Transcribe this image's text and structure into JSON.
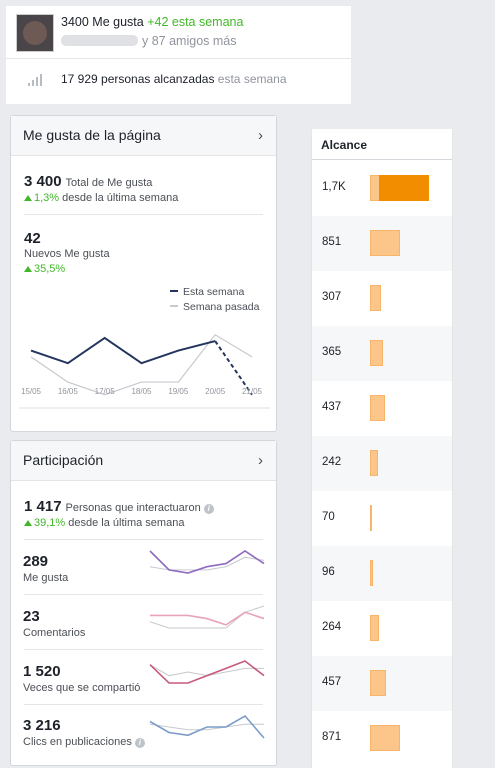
{
  "summary": {
    "likes_count": "3400 Me gusta",
    "likes_week": "+42 esta semana",
    "friends_text": "y 87 amigos más",
    "reach_count": "17 929 personas alcanzadas",
    "reach_week": "esta semana"
  },
  "page_likes": {
    "title": "Me gusta de la página",
    "total": "3 400",
    "total_label": "Total de Me gusta",
    "total_change": "1,3%",
    "total_change_label": "desde la última semana",
    "new": "42",
    "new_label": "Nuevos Me gusta",
    "new_change": "35,5%",
    "legend": {
      "this_week": "Esta semana",
      "last_week": "Semana pasada"
    },
    "colors": {
      "this_week": "#23355e",
      "last_week": "#c7c9cf"
    },
    "chart_data": {
      "type": "line",
      "x": [
        "15/05",
        "16/05",
        "17/05",
        "18/05",
        "19/05",
        "20/05",
        "21/05"
      ],
      "series": [
        {
          "name": "Esta semana",
          "values": [
            7,
            5,
            9,
            5,
            7,
            8.5,
            0
          ],
          "projected_from_index": 5
        },
        {
          "name": "Semana pasada",
          "values": [
            6,
            2,
            0,
            2,
            2,
            9.5,
            6
          ]
        }
      ],
      "ylim": [
        -1,
        12
      ],
      "grid": false
    }
  },
  "engagement": {
    "title": "Participación",
    "total": "1 417",
    "total_label": "Personas que interactuaron",
    "total_change": "39,1%",
    "total_change_label": "desde la última semana",
    "info_icon": "i",
    "metrics": [
      {
        "value": "289",
        "label": "Me gusta",
        "color": "#8e6bbf",
        "this_week": [
          6,
          3,
          2.5,
          3.5,
          4,
          6,
          4
        ],
        "last_week": [
          3.5,
          3,
          3,
          3,
          3.5,
          5,
          4.5
        ]
      },
      {
        "value": "23",
        "label": "Comentarios",
        "color": "#e8a3b8",
        "this_week": [
          5,
          5,
          5,
          4,
          2,
          6,
          4
        ],
        "last_week": [
          3,
          1,
          1,
          1,
          1,
          6,
          8
        ]
      },
      {
        "value": "1 520",
        "label": "Veces que se compartió",
        "color": "#c55a7d",
        "this_week": [
          7,
          2,
          2,
          4,
          6,
          8,
          4
        ],
        "last_week": [
          7,
          4,
          5,
          4,
          5,
          6,
          6
        ]
      },
      {
        "value": "3 216",
        "label": "Clics en publicaciones",
        "color": "#7b9cc9",
        "this_week": [
          7,
          3,
          2,
          5,
          5,
          9,
          1
        ],
        "last_week": [
          6,
          5,
          4,
          4,
          5,
          6,
          6
        ]
      }
    ]
  },
  "reach": {
    "header": "Alcance",
    "colors": {
      "organic": "#fcc68a",
      "paid": "#f28d00"
    },
    "rows": [
      {
        "label": "1,7K",
        "value": 1700,
        "paid": true
      },
      {
        "label": "851",
        "value": 851
      },
      {
        "label": "307",
        "value": 307
      },
      {
        "label": "365",
        "value": 365
      },
      {
        "label": "437",
        "value": 437
      },
      {
        "label": "242",
        "value": 242
      },
      {
        "label": "70",
        "value": 70
      },
      {
        "label": "96",
        "value": 96
      },
      {
        "label": "264",
        "value": 264
      },
      {
        "label": "457",
        "value": 457
      },
      {
        "label": "871",
        "value": 871
      }
    ]
  }
}
